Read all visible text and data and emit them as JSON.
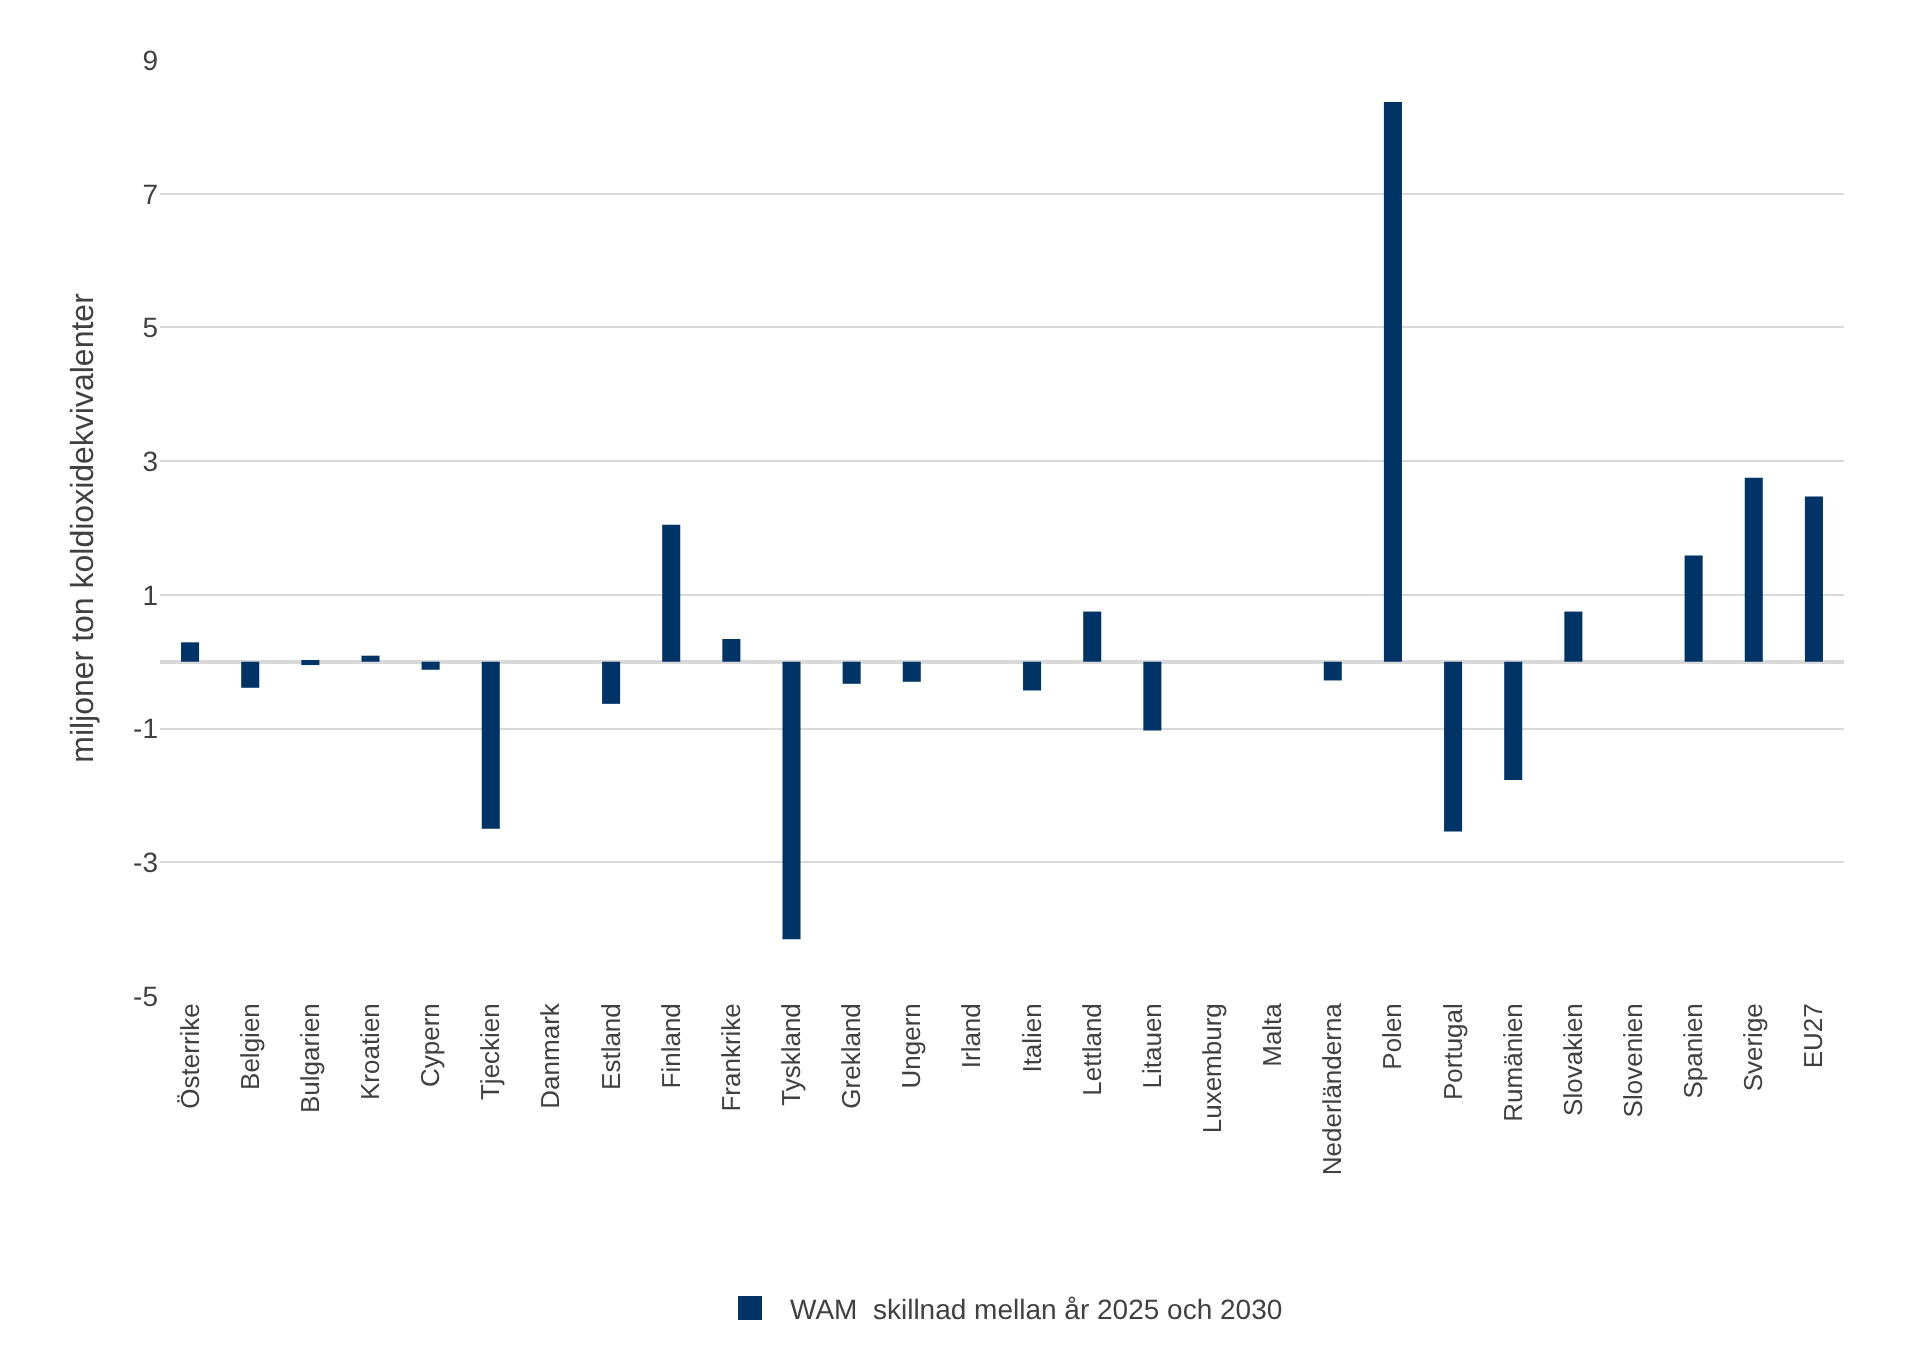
{
  "chart_data": {
    "type": "bar",
    "categories": [
      "Österrike",
      "Belgien",
      "Bulgarien",
      "Kroatien",
      "Cypern",
      "Tjeckien",
      "Danmark",
      "Estland",
      "Finland",
      "Frankrike",
      "Tyskland",
      "Grekland",
      "Ungern",
      "Irland",
      "Italien",
      "Lettland",
      "Litauen",
      "Luxemburg",
      "Malta",
      "Nederländerna",
      "Polen",
      "Portugal",
      "Rumänien",
      "Slovakien",
      "Slovenien",
      "Spanien",
      "Sverige",
      "EU27"
    ],
    "series": [
      {
        "name": "WAM  skillnad mellan år 2025 och 2030",
        "color": "#003366",
        "values": [
          0.29,
          -0.39,
          -0.05,
          0.09,
          -0.12,
          -2.5,
          0,
          -0.63,
          2.05,
          0.34,
          -4.15,
          -0.33,
          -0.3,
          0,
          -0.43,
          0.75,
          -1.03,
          0,
          0,
          -0.28,
          8.37,
          -2.54,
          -1.77,
          0.75,
          0,
          1.59,
          2.75,
          2.47
        ]
      }
    ],
    "ylabel": "miljoner ton koldioxidekvivalenter",
    "ylim": [
      -5,
      9
    ],
    "yticks": [
      -5,
      -3,
      -1,
      1,
      3,
      5,
      7,
      9
    ],
    "grid": "y",
    "legend": "bottom"
  }
}
